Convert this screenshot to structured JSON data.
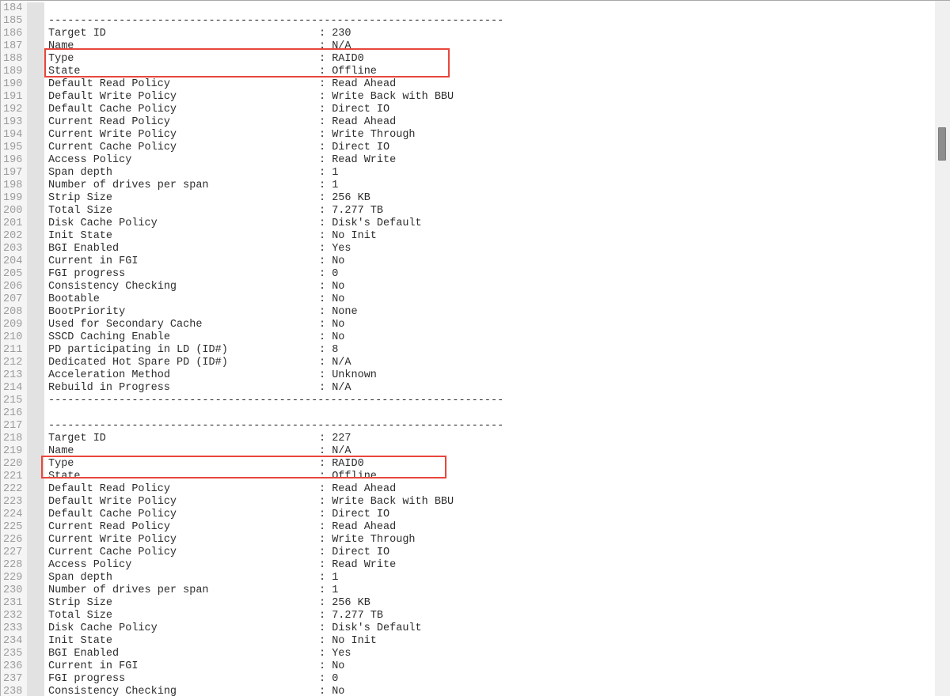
{
  "viewer": {
    "kind": "raid-controller-log-viewer",
    "separator": "-----------------------------------------------------------------------",
    "colors": {
      "annotation_red": "#e8463c",
      "text": "#2d2d2d",
      "line_number": "#9c9c9c",
      "fold_margin": "#e2e2e2",
      "scrollbar_thumb": "#8e8e8e"
    },
    "lines": [
      {
        "n": "184",
        "kind": "blank"
      },
      {
        "n": "185",
        "kind": "sep"
      },
      {
        "n": "186",
        "kind": "kv",
        "label": "Target ID",
        "value": "230"
      },
      {
        "n": "187",
        "kind": "kv",
        "label": "Name",
        "value": "N/A"
      },
      {
        "n": "188",
        "kind": "kv",
        "label": "Type",
        "value": "RAID0"
      },
      {
        "n": "189",
        "kind": "kv",
        "label": "State",
        "value": "Offline"
      },
      {
        "n": "190",
        "kind": "kv",
        "label": "Default Read Policy",
        "value": "Read Ahead"
      },
      {
        "n": "191",
        "kind": "kv",
        "label": "Default Write Policy",
        "value": "Write Back with BBU"
      },
      {
        "n": "192",
        "kind": "kv",
        "label": "Default Cache Policy",
        "value": "Direct IO"
      },
      {
        "n": "193",
        "kind": "kv",
        "label": "Current Read Policy",
        "value": "Read Ahead"
      },
      {
        "n": "194",
        "kind": "kv",
        "label": "Current Write Policy",
        "value": "Write Through"
      },
      {
        "n": "195",
        "kind": "kv",
        "label": "Current Cache Policy",
        "value": "Direct IO"
      },
      {
        "n": "196",
        "kind": "kv",
        "label": "Access Policy",
        "value": "Read Write"
      },
      {
        "n": "197",
        "kind": "kv",
        "label": "Span depth",
        "value": "1"
      },
      {
        "n": "198",
        "kind": "kv",
        "label": "Number of drives per span",
        "value": "1"
      },
      {
        "n": "199",
        "kind": "kv",
        "label": "Strip Size",
        "value": "256 KB"
      },
      {
        "n": "200",
        "kind": "kv",
        "label": "Total Size",
        "value": "7.277 TB"
      },
      {
        "n": "201",
        "kind": "kv",
        "label": "Disk Cache Policy",
        "value": "Disk's Default"
      },
      {
        "n": "202",
        "kind": "kv",
        "label": "Init State",
        "value": "No Init"
      },
      {
        "n": "203",
        "kind": "kv",
        "label": "BGI Enabled",
        "value": "Yes"
      },
      {
        "n": "204",
        "kind": "kv",
        "label": "Current in FGI",
        "value": "No"
      },
      {
        "n": "205",
        "kind": "kv",
        "label": "FGI progress",
        "value": "0"
      },
      {
        "n": "206",
        "kind": "kv",
        "label": "Consistency Checking",
        "value": "No"
      },
      {
        "n": "207",
        "kind": "kv",
        "label": "Bootable",
        "value": "No"
      },
      {
        "n": "208",
        "kind": "kv",
        "label": "BootPriority",
        "value": "None"
      },
      {
        "n": "209",
        "kind": "kv",
        "label": "Used for Secondary Cache",
        "value": "No"
      },
      {
        "n": "210",
        "kind": "kv",
        "label": "SSCD Caching Enable",
        "value": "No"
      },
      {
        "n": "211",
        "kind": "kv",
        "label": "PD participating in LD (ID#)",
        "value": "8"
      },
      {
        "n": "212",
        "kind": "kv",
        "label": "Dedicated Hot Spare PD (ID#)",
        "value": "N/A"
      },
      {
        "n": "213",
        "kind": "kv",
        "label": "Acceleration Method",
        "value": "Unknown"
      },
      {
        "n": "214",
        "kind": "kv",
        "label": "Rebuild in Progress",
        "value": "N/A"
      },
      {
        "n": "215",
        "kind": "sep"
      },
      {
        "n": "216",
        "kind": "blank"
      },
      {
        "n": "217",
        "kind": "sep"
      },
      {
        "n": "218",
        "kind": "kv",
        "label": "Target ID",
        "value": "227"
      },
      {
        "n": "219",
        "kind": "kv",
        "label": "Name",
        "value": "N/A"
      },
      {
        "n": "220",
        "kind": "kv",
        "label": "Type",
        "value": "RAID0"
      },
      {
        "n": "221",
        "kind": "kv",
        "label": "State",
        "value": "Offline"
      },
      {
        "n": "222",
        "kind": "kv",
        "label": "Default Read Policy",
        "value": "Read Ahead"
      },
      {
        "n": "223",
        "kind": "kv",
        "label": "Default Write Policy",
        "value": "Write Back with BBU"
      },
      {
        "n": "224",
        "kind": "kv",
        "label": "Default Cache Policy",
        "value": "Direct IO"
      },
      {
        "n": "225",
        "kind": "kv",
        "label": "Current Read Policy",
        "value": "Read Ahead"
      },
      {
        "n": "226",
        "kind": "kv",
        "label": "Current Write Policy",
        "value": "Write Through"
      },
      {
        "n": "227",
        "kind": "kv",
        "label": "Current Cache Policy",
        "value": "Direct IO"
      },
      {
        "n": "228",
        "kind": "kv",
        "label": "Access Policy",
        "value": "Read Write"
      },
      {
        "n": "229",
        "kind": "kv",
        "label": "Span depth",
        "value": "1"
      },
      {
        "n": "230",
        "kind": "kv",
        "label": "Number of drives per span",
        "value": "1"
      },
      {
        "n": "231",
        "kind": "kv",
        "label": "Strip Size",
        "value": "256 KB"
      },
      {
        "n": "232",
        "kind": "kv",
        "label": "Total Size",
        "value": "7.277 TB"
      },
      {
        "n": "233",
        "kind": "kv",
        "label": "Disk Cache Policy",
        "value": "Disk's Default"
      },
      {
        "n": "234",
        "kind": "kv",
        "label": "Init State",
        "value": "No Init"
      },
      {
        "n": "235",
        "kind": "kv",
        "label": "BGI Enabled",
        "value": "Yes"
      },
      {
        "n": "236",
        "kind": "kv",
        "label": "Current in FGI",
        "value": "No"
      },
      {
        "n": "237",
        "kind": "kv",
        "label": "FGI progress",
        "value": "0"
      },
      {
        "n": "238",
        "kind": "kv",
        "label": "Consistency Checking",
        "value": "No"
      }
    ],
    "annotations": [
      {
        "id": "box-1",
        "highlights": "Type: RAID0 / State: Offline",
        "lines": "188-189"
      },
      {
        "id": "box-2",
        "highlights": "Type: RAID0 / State: Offline",
        "lines": "220-221"
      }
    ]
  }
}
